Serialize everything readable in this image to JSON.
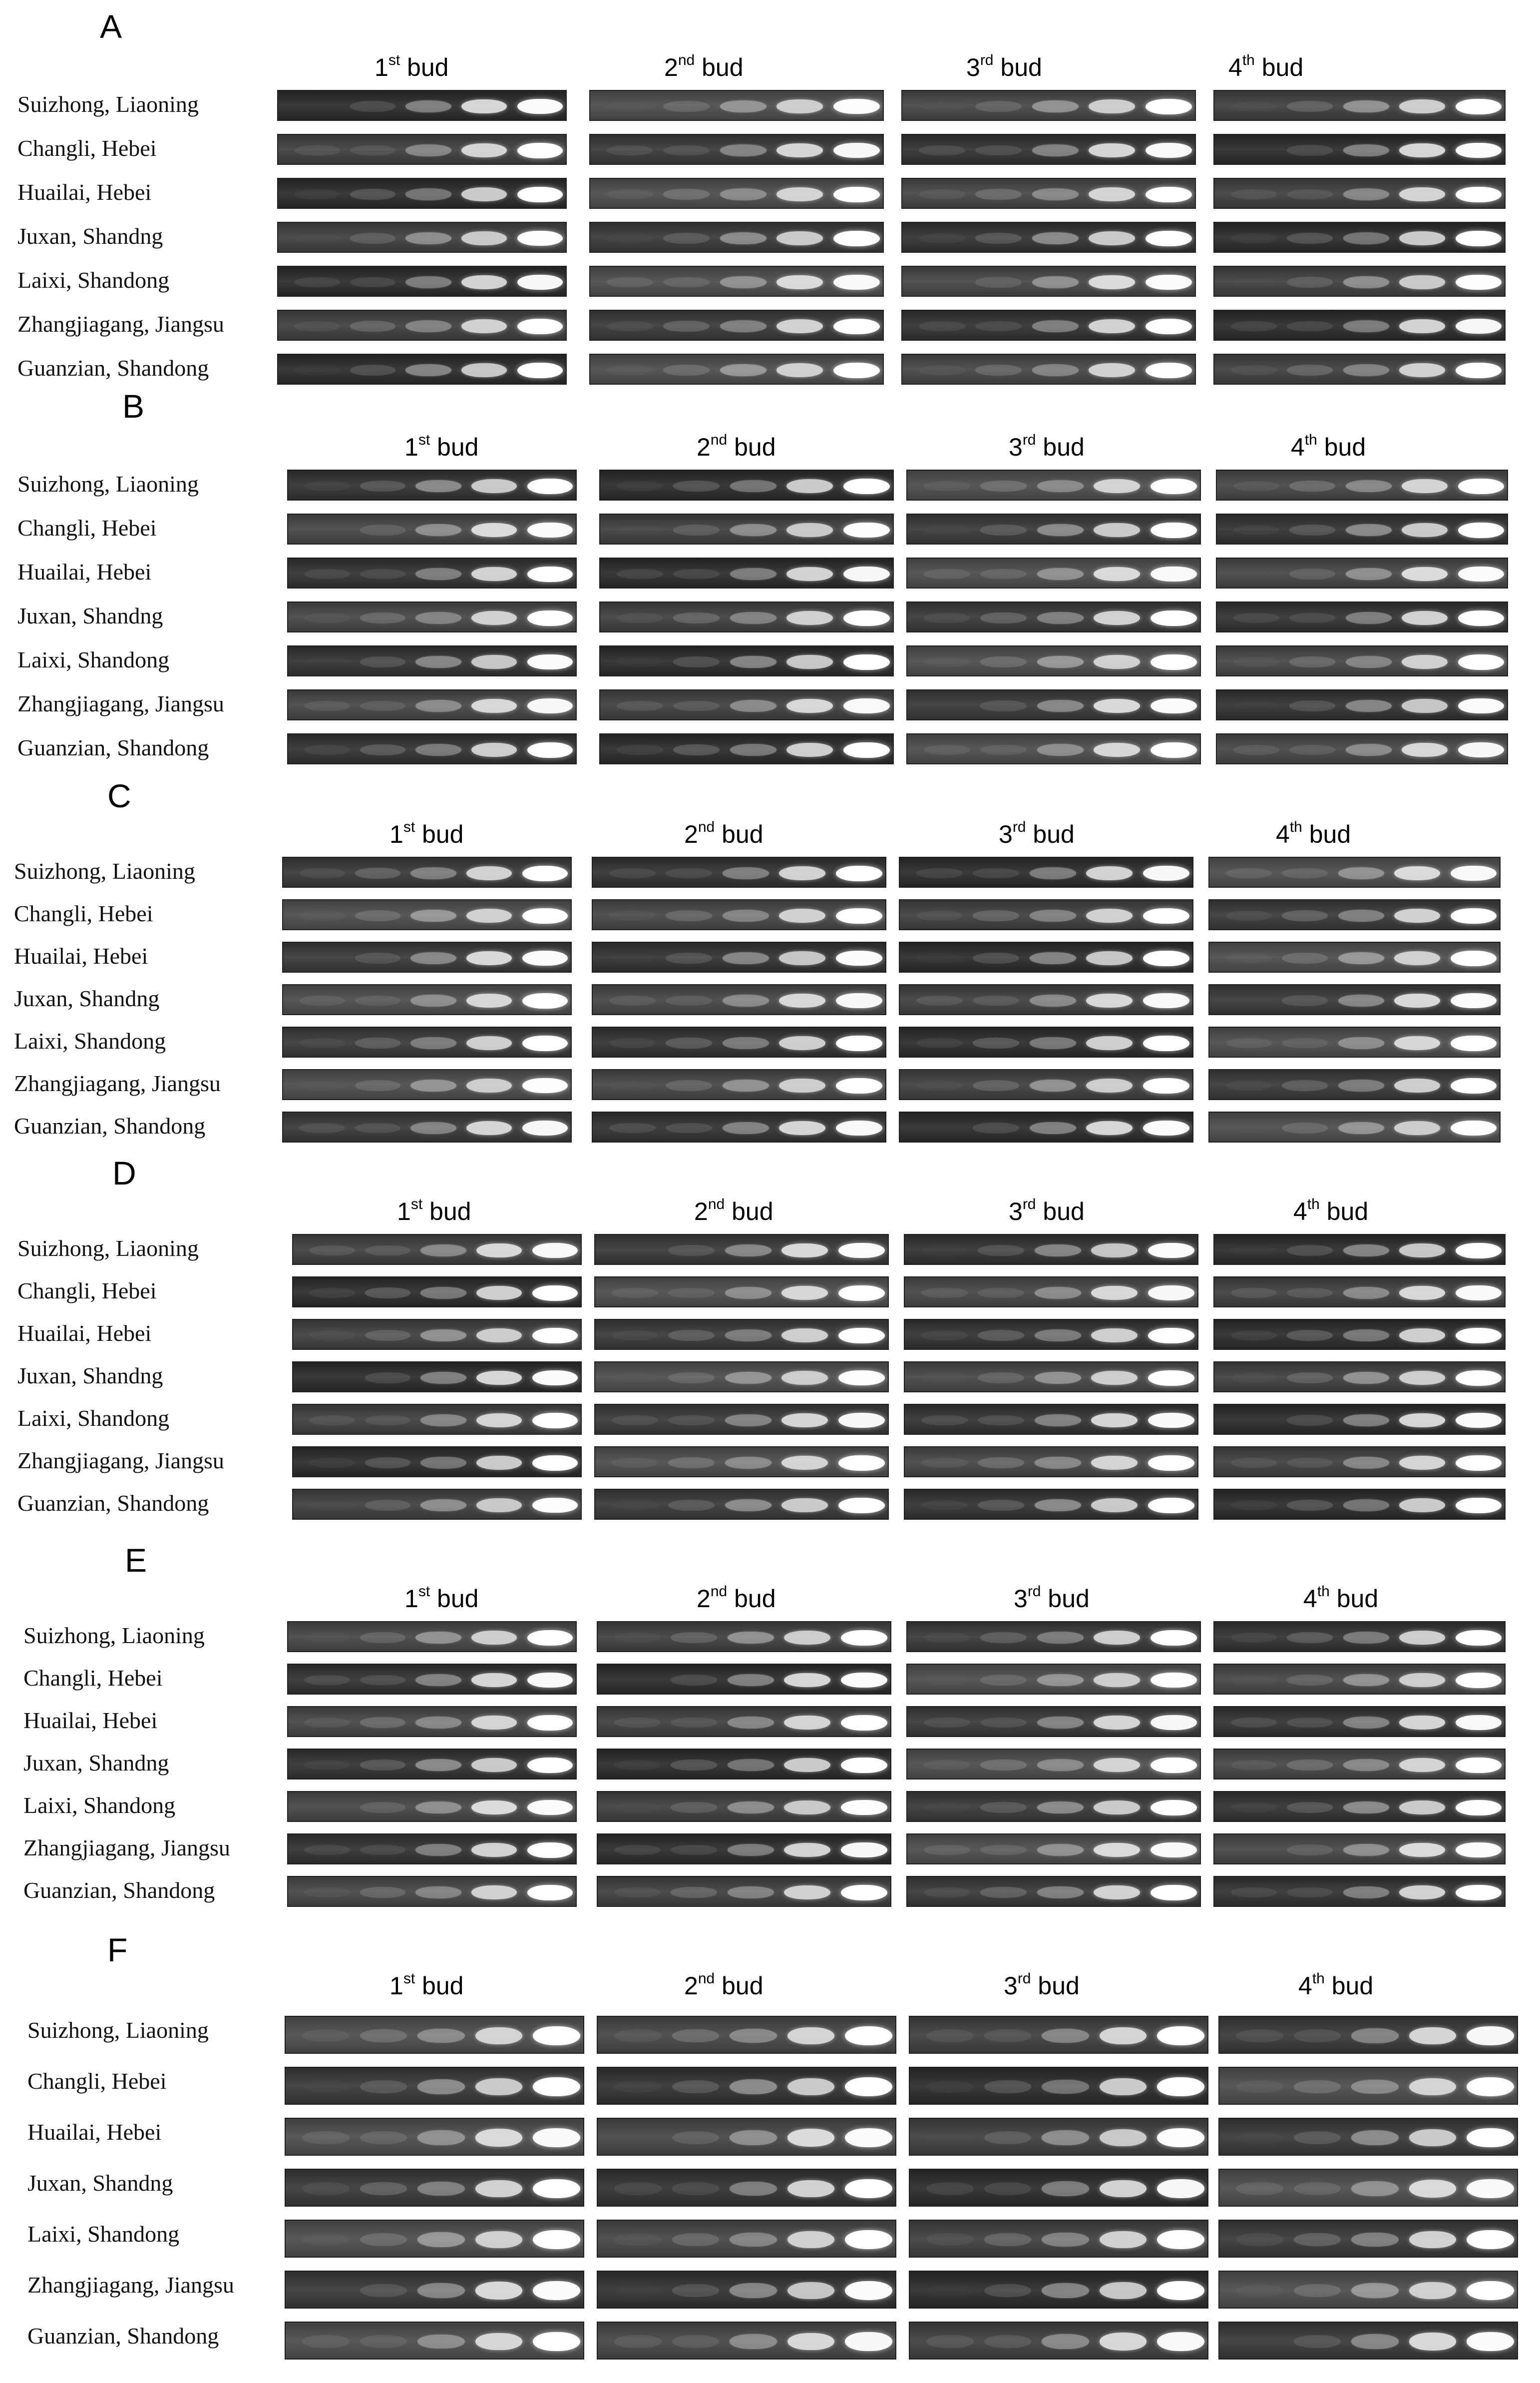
{
  "panels": [
    {
      "letter": "A"
    },
    {
      "letter": "B"
    },
    {
      "letter": "C"
    },
    {
      "letter": "D"
    },
    {
      "letter": "E"
    },
    {
      "letter": "F"
    }
  ],
  "bud_headers": [
    {
      "num": "1",
      "sup": "st",
      "word": "bud"
    },
    {
      "num": "2",
      "sup": "nd",
      "word": "bud"
    },
    {
      "num": "3",
      "sup": "rd",
      "word": "bud"
    },
    {
      "num": "4",
      "sup": "th",
      "word": "bud"
    }
  ],
  "row_labels": [
    "Suizhong, Liaoning",
    "Changli, Hebei",
    "Huailai, Hebei",
    "Juxan, Shandng",
    "Laixi, Shandong",
    "Zhangjiagang, Jiangsu",
    "Guanzian, Shandong"
  ],
  "gel": {
    "lanes_per_strip": 5,
    "background_color": "#4a4a4a",
    "band_color": "#ffffff"
  }
}
